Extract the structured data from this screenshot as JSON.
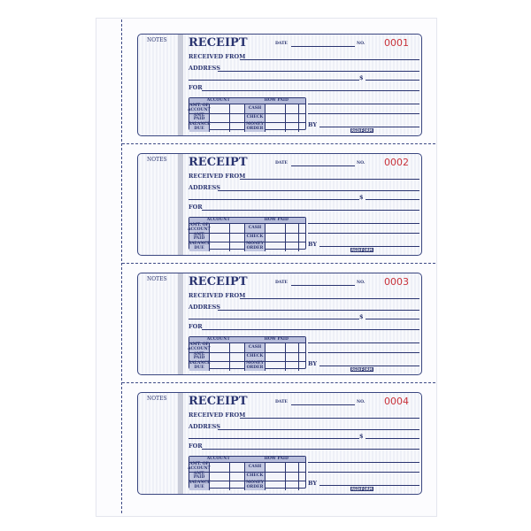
{
  "receipts": [
    {
      "number": "0001"
    },
    {
      "number": "0002"
    },
    {
      "number": "0003"
    },
    {
      "number": "0004"
    }
  ],
  "labels": {
    "notes": "NOTES",
    "title": "RECEIPT",
    "date": "DATE",
    "no": "NO.",
    "received_from": "RECEIVED FROM",
    "address": "ADDRESS",
    "dollar": "$",
    "for": "FOR",
    "by": "BY",
    "account": "ACCOUNT",
    "how_paid": "HOW PAID",
    "amt_of_account": "AMT. OF ACCOUNT",
    "amt_paid": "AMT. PAID",
    "balance_due": "BALANCE DUE",
    "cash": "CASH",
    "check": "CHECK",
    "money_order": "MONEY ORDER",
    "brand": "REDIFORM"
  },
  "colors": {
    "ink": "#2a3470",
    "number": "#c8323a"
  }
}
